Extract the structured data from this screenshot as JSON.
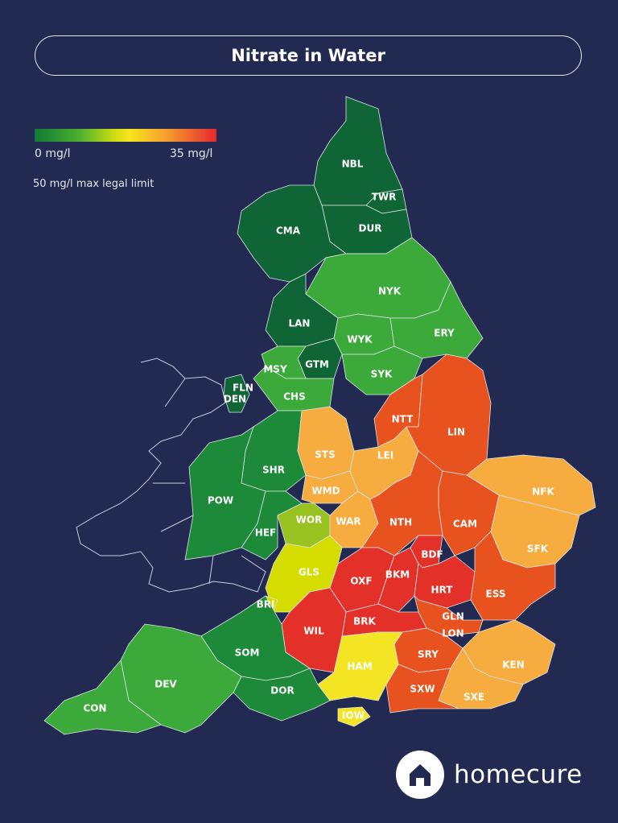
{
  "title": "Nitrate in Water",
  "legend": {
    "min_label": "0 mg/l",
    "max_label": "35 mg/l",
    "note": "50 mg/l max legal limit",
    "gradient_colors": [
      "#0e7a37",
      "#4fb030",
      "#f5e51e",
      "#f5a02e",
      "#e5282e"
    ]
  },
  "colors": {
    "dark_green": "#0f6536",
    "green": "#1d8a3a",
    "light_green": "#3caa3a",
    "yellow_green": "#98c21f",
    "lime": "#d5dc00",
    "yellow": "#f3e524",
    "light_orange": "#f7ac3f",
    "orange_red": "#e8521f",
    "red": "#e33129",
    "outline_only": "none"
  },
  "regions": [
    {
      "code": "NBL",
      "color": "dark_green"
    },
    {
      "code": "TWR",
      "color": "dark_green"
    },
    {
      "code": "DUR",
      "color": "dark_green"
    },
    {
      "code": "CMA",
      "color": "dark_green"
    },
    {
      "code": "NYK",
      "color": "light_green"
    },
    {
      "code": "LAN",
      "color": "dark_green"
    },
    {
      "code": "WYK",
      "color": "light_green"
    },
    {
      "code": "ERY",
      "color": "light_green"
    },
    {
      "code": "GTM",
      "color": "dark_green"
    },
    {
      "code": "MSY",
      "color": "light_green"
    },
    {
      "code": "SYK",
      "color": "light_green"
    },
    {
      "code": "CHS",
      "color": "light_green"
    },
    {
      "code": "FLN",
      "color": "dark_green"
    },
    {
      "code": "DEN",
      "color": "dark_green"
    },
    {
      "code": "SHR",
      "color": "green"
    },
    {
      "code": "POW",
      "color": "green"
    },
    {
      "code": "HEF",
      "color": "green"
    },
    {
      "code": "STS",
      "color": "light_orange"
    },
    {
      "code": "WMD",
      "color": "light_orange"
    },
    {
      "code": "WOR",
      "color": "yellow_green"
    },
    {
      "code": "WAR",
      "color": "light_orange"
    },
    {
      "code": "LEI",
      "color": "light_orange"
    },
    {
      "code": "NTT",
      "color": "orange_red"
    },
    {
      "code": "LIN",
      "color": "orange_red"
    },
    {
      "code": "NFK",
      "color": "light_orange"
    },
    {
      "code": "SFK",
      "color": "light_orange"
    },
    {
      "code": "CAM",
      "color": "orange_red"
    },
    {
      "code": "NTH",
      "color": "orange_red"
    },
    {
      "code": "GLS",
      "color": "lime"
    },
    {
      "code": "BRI",
      "color": "lime"
    },
    {
      "code": "OXF",
      "color": "red"
    },
    {
      "code": "BKM",
      "color": "red"
    },
    {
      "code": "BDF",
      "color": "red"
    },
    {
      "code": "HRT",
      "color": "red"
    },
    {
      "code": "ESS",
      "color": "orange_red"
    },
    {
      "code": "GLN",
      "color": "orange_red"
    },
    {
      "code": "LON",
      "color": "orange_red"
    },
    {
      "code": "BRK",
      "color": "red"
    },
    {
      "code": "WIL",
      "color": "red"
    },
    {
      "code": "SRY",
      "color": "orange_red"
    },
    {
      "code": "KEN",
      "color": "light_orange"
    },
    {
      "code": "SXE",
      "color": "light_orange"
    },
    {
      "code": "SXW",
      "color": "orange_red"
    },
    {
      "code": "HAM",
      "color": "yellow"
    },
    {
      "code": "IOW",
      "color": "yellow"
    },
    {
      "code": "SOM",
      "color": "green"
    },
    {
      "code": "DOR",
      "color": "green"
    },
    {
      "code": "DEV",
      "color": "light_green"
    },
    {
      "code": "CON",
      "color": "light_green"
    }
  ],
  "brand": {
    "name": "homecure",
    "logo_icon": "house-icon"
  }
}
